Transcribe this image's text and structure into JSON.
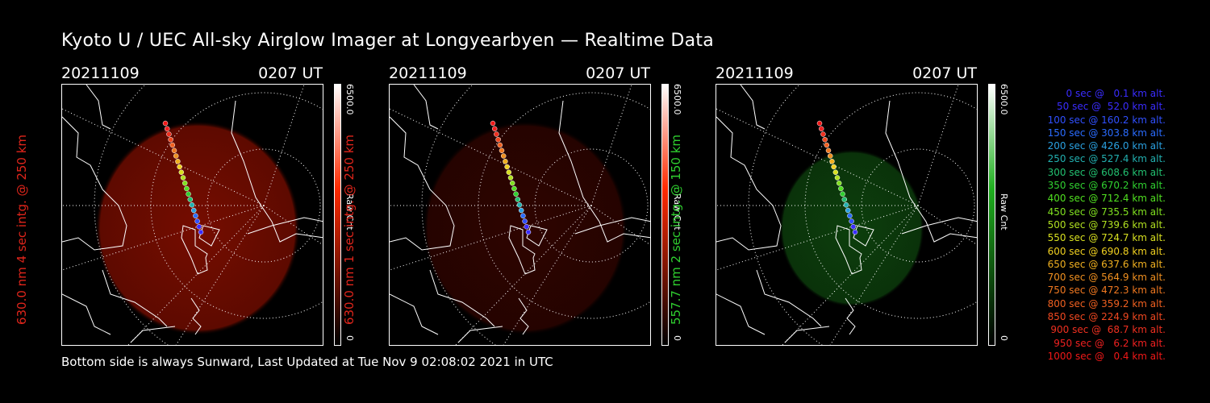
{
  "title": "Kyoto U / UEC All-sky Airglow Imager at Longyearbyen — Realtime Data",
  "footer": "Bottom side is always Sunward, Last Updated at Tue Nov  9 02:08:02 2021 in UTC",
  "panels": [
    {
      "date": "20211109",
      "time": "0207 UT",
      "ylabel": "630.0 nm 4 sec intg. @ 250 km",
      "label_color": "#e0251b",
      "colorbar_max": "6500.0",
      "colorbar_min": "0",
      "colorbar_unit": "Raw Cnt",
      "colorbar_color": "#ff2a00",
      "glow_color": "#8a0f00",
      "glow_opacity": 0.85
    },
    {
      "date": "20211109",
      "time": "0207 UT",
      "ylabel": "630.0 nm 1 sec intg. @ 250 km",
      "label_color": "#e0251b",
      "colorbar_max": "6500.0",
      "colorbar_min": "0",
      "colorbar_unit": "Raw Cnt",
      "colorbar_color": "#ff2a00",
      "glow_color": "#3a0500",
      "glow_opacity": 0.8
    },
    {
      "date": "20211109",
      "time": "0207 UT",
      "ylabel": "557.7 nm 2 sec intg. @ 150 km",
      "label_color": "#2fcf2f",
      "colorbar_max": "6500.0",
      "colorbar_min": "0",
      "colorbar_unit": "Raw Cnt",
      "colorbar_color": "#1faf1f",
      "glow_color": "#0f4a0f",
      "glow_opacity": 0.85
    }
  ],
  "legend": [
    {
      "text": "0 sec @   0.1 km alt.",
      "color": "#3a2cff"
    },
    {
      "text": "50 sec @  52.0 km alt.",
      "color": "#3a2cff"
    },
    {
      "text": "100 sec @ 160.2 km alt.",
      "color": "#3050ff"
    },
    {
      "text": "150 sec @ 303.8 km alt.",
      "color": "#2a6cff"
    },
    {
      "text": "200 sec @ 426.0 km alt.",
      "color": "#2aa0e0"
    },
    {
      "text": "250 sec @ 527.4 km alt.",
      "color": "#22b0b0"
    },
    {
      "text": "300 sec @ 608.6 km alt.",
      "color": "#22c070"
    },
    {
      "text": "350 sec @ 670.2 km alt.",
      "color": "#30d030"
    },
    {
      "text": "400 sec @ 712.4 km alt.",
      "color": "#50e020"
    },
    {
      "text": "450 sec @ 735.5 km alt.",
      "color": "#80e020"
    },
    {
      "text": "500 sec @ 739.6 km alt.",
      "color": "#b0e020"
    },
    {
      "text": "550 sec @ 724.7 km alt.",
      "color": "#d8e020"
    },
    {
      "text": "600 sec @ 690.8 km alt.",
      "color": "#f0d020"
    },
    {
      "text": "650 sec @ 637.6 km alt.",
      "color": "#f0b020"
    },
    {
      "text": "700 sec @ 564.9 km alt.",
      "color": "#f09020"
    },
    {
      "text": "750 sec @ 472.3 km alt.",
      "color": "#f07820"
    },
    {
      "text": "800 sec @ 359.2 km alt.",
      "color": "#f06020"
    },
    {
      "text": "850 sec @ 224.9 km alt.",
      "color": "#f04820"
    },
    {
      "text": "900 sec @  68.7 km alt.",
      "color": "#f03020"
    },
    {
      "text": "950 sec @   6.2 km alt.",
      "color": "#f02020"
    },
    {
      "text": "1000 sec @   0.4 km alt.",
      "color": "#f01818"
    }
  ]
}
